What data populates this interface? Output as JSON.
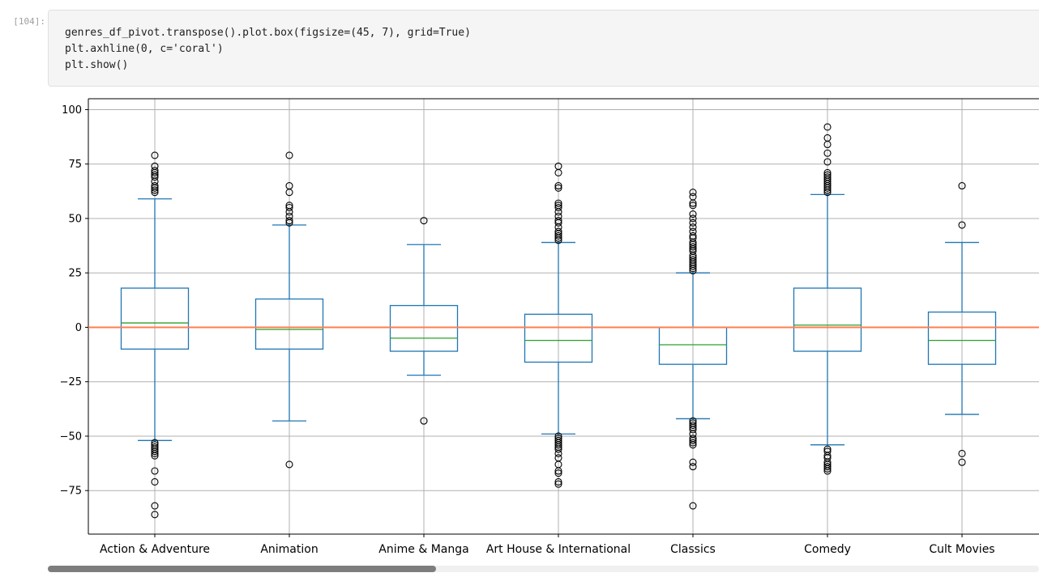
{
  "cell": {
    "prompt": "[104]:",
    "code_lines": [
      "genres_df_pivot.transpose().plot.box(figsize=(45, 7), grid=True)",
      "plt.axhline(0, c='coral')",
      "plt.show()"
    ]
  },
  "colors": {
    "box": "#1f77b4",
    "median": "#2ca02c",
    "axhline": "coral",
    "grid": "#b0b0b0"
  },
  "chart_data": {
    "type": "box",
    "grid": true,
    "ylim": [
      -95,
      105
    ],
    "yticks": [
      100,
      75,
      50,
      25,
      0,
      -25,
      -50,
      -75
    ],
    "axhline": 0,
    "categories": [
      "Action & Adventure",
      "Animation",
      "Anime & Manga",
      "Art House & International",
      "Classics",
      "Comedy",
      "Cult Movies"
    ],
    "boxes": [
      {
        "q1": -10,
        "median": 2,
        "q3": 18,
        "whislo": -52,
        "whishi": 59,
        "fliers": [
          79,
          74,
          72,
          71,
          70,
          69,
          67,
          65,
          64,
          63,
          62,
          -53,
          -54,
          -55,
          -56,
          -57,
          -58,
          -59,
          -66,
          -71,
          -82,
          -86
        ]
      },
      {
        "q1": -10,
        "median": -1,
        "q3": 13,
        "whislo": -43,
        "whishi": 47,
        "fliers": [
          79,
          65,
          62,
          56,
          55,
          53,
          51,
          49,
          48,
          -63
        ]
      },
      {
        "q1": -11,
        "median": -5,
        "q3": 10,
        "whislo": -22,
        "whishi": 38,
        "fliers": [
          49,
          -43
        ]
      },
      {
        "q1": -16,
        "median": -6,
        "q3": 6,
        "whislo": -49,
        "whishi": 39,
        "fliers": [
          74,
          71,
          65,
          64,
          57,
          56,
          55,
          53,
          51,
          49,
          48,
          46,
          44,
          43,
          42,
          41,
          40,
          -50,
          -51,
          -52,
          -53,
          -54,
          -55,
          -56,
          -58,
          -60,
          -63,
          -66,
          -67,
          -71,
          -72
        ]
      },
      {
        "q1": -17,
        "median": -8,
        "q3": 0,
        "whislo": -42,
        "whishi": 25,
        "fliers": [
          62,
          60,
          57,
          56,
          52,
          50,
          48,
          46,
          44,
          42,
          41,
          39,
          38,
          37,
          36,
          35,
          33,
          32,
          31,
          30,
          29,
          28,
          27,
          26,
          -43,
          -44,
          -45,
          -46,
          -47,
          -49,
          -51,
          -52,
          -53,
          -54,
          -62,
          -64,
          -82
        ]
      },
      {
        "q1": -11,
        "median": 1,
        "q3": 18,
        "whislo": -54,
        "whishi": 61,
        "fliers": [
          92,
          87,
          84,
          80,
          76,
          71,
          70,
          69,
          68,
          67,
          66,
          65,
          64,
          63,
          62,
          -56,
          -57,
          -59,
          -60,
          -62,
          -63,
          -64,
          -65,
          -66
        ]
      },
      {
        "q1": -17,
        "median": -6,
        "q3": 7,
        "whislo": -40,
        "whishi": 39,
        "fliers": [
          65,
          47,
          -58,
          -62
        ]
      }
    ]
  }
}
